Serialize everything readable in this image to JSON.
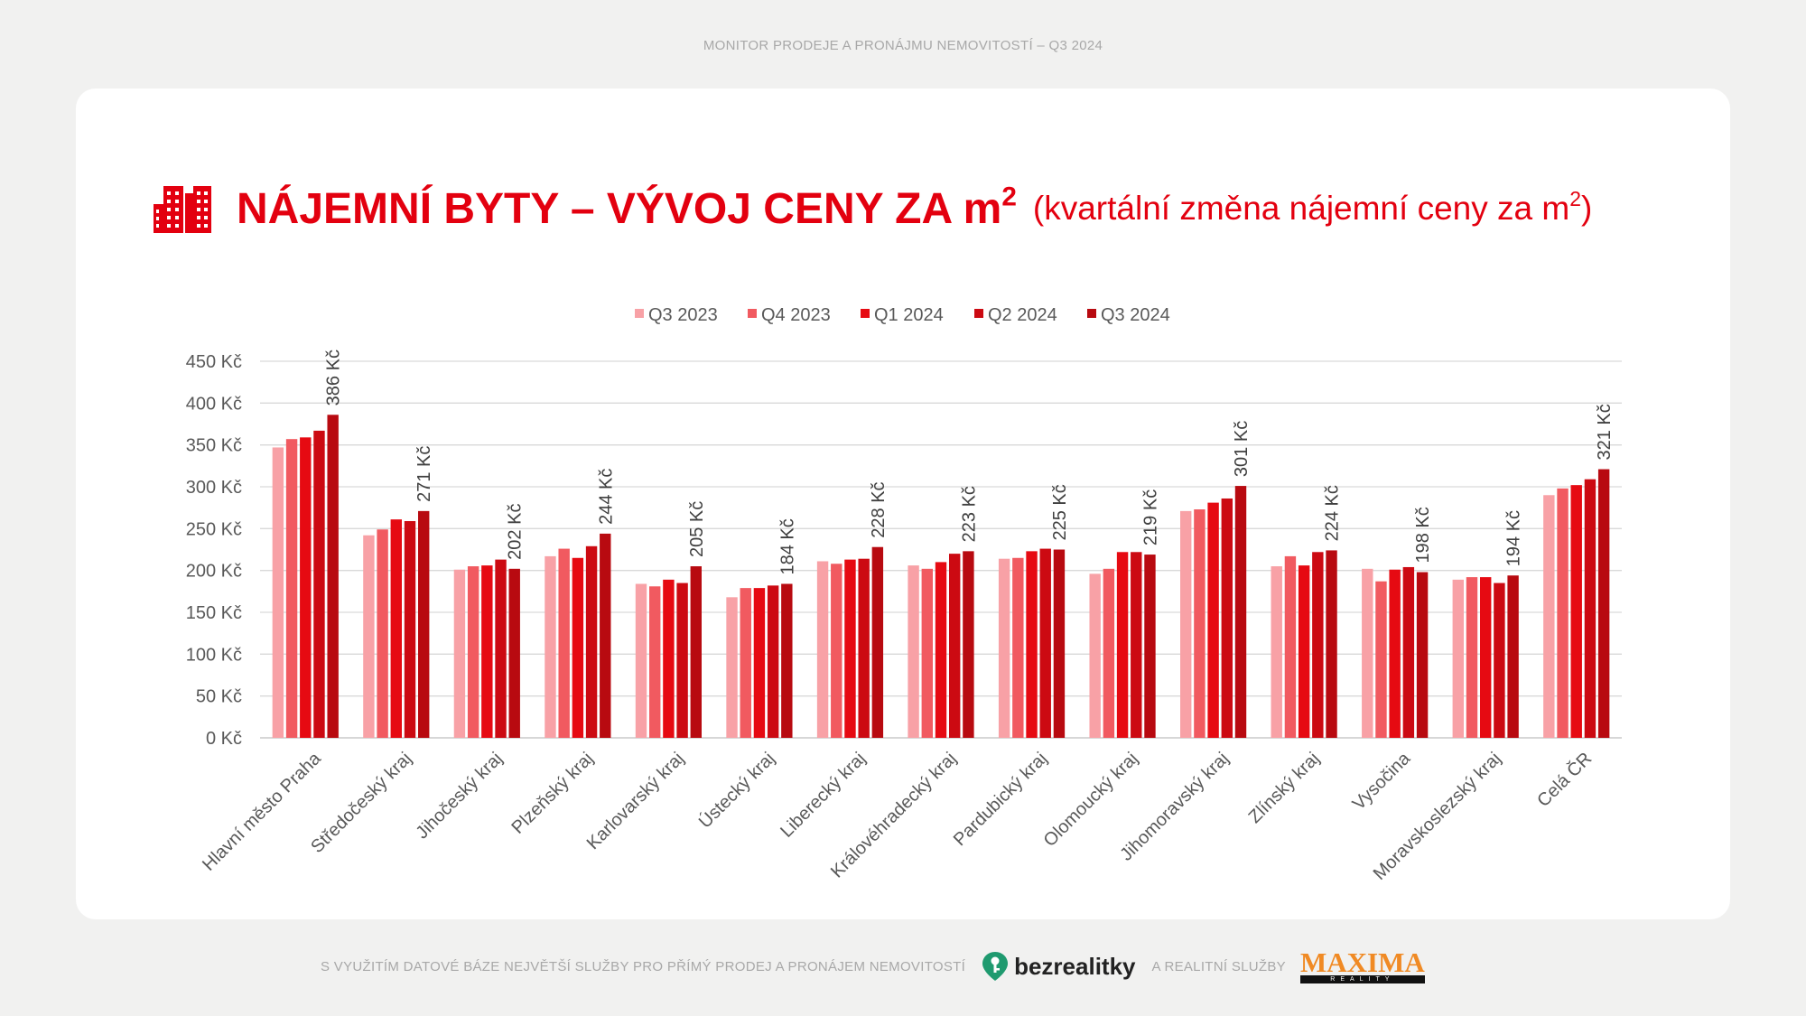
{
  "header": {
    "top_text": "MONITOR PRODEJE A PRONÁJMU NEMOVITOSTÍ – Q3 2024"
  },
  "title": {
    "main": "NÁJEMNÍ BYTY – VÝVOJ CENY ZA m",
    "main_sup": "2",
    "sub": "(kvartální změna nájemní ceny za m",
    "sub_sup": "2",
    "sub_end": ")",
    "icon": "apartment-buildings-icon"
  },
  "footer": {
    "text1": "S VYUŽITÍM DATOVÉ BÁZE NEJVĚTŠÍ SLUŽBY PRO PŘÍMÝ PRODEJ A PRONÁJEM NEMOVITOSTÍ",
    "brand1": "bezrealitky",
    "brand1_icon": "location-key-icon",
    "text2": "A REALITNÍ SLUŽBY",
    "brand2": "MAXIMA",
    "brand2_sub": "REALITY"
  },
  "colors": {
    "title": "#e3000f",
    "series": [
      "#f8a1a6",
      "#f15a60",
      "#e60a12",
      "#cc0a12",
      "#b80a10"
    ]
  },
  "chart_data": {
    "type": "bar",
    "categories": [
      "Hlavní město Praha",
      "Středočeský kraj",
      "Jihočeský kraj",
      "Plzeňský kraj",
      "Karlovarský kraj",
      "Ústecký kraj",
      "Liberecký kraj",
      "Královéhradecký kraj",
      "Pardubický kraj",
      "Olomoucký kraj",
      "Jihomoravský kraj",
      "Zlínský kraj",
      "Vysočina",
      "Moravskoslezský kraj",
      "Celá ČR"
    ],
    "series": [
      {
        "name": "Q3 2023",
        "values": [
          347,
          242,
          201,
          217,
          184,
          168,
          211,
          206,
          214,
          196,
          271,
          205,
          202,
          189,
          290
        ]
      },
      {
        "name": "Q4 2023",
        "values": [
          357,
          249,
          205,
          226,
          181,
          179,
          208,
          202,
          215,
          202,
          273,
          217,
          187,
          192,
          298
        ]
      },
      {
        "name": "Q1 2024",
        "values": [
          359,
          261,
          206,
          215,
          189,
          179,
          213,
          210,
          223,
          222,
          281,
          206,
          201,
          192,
          302
        ]
      },
      {
        "name": "Q2 2024",
        "values": [
          367,
          259,
          213,
          229,
          185,
          182,
          214,
          220,
          226,
          222,
          286,
          222,
          204,
          185,
          309
        ]
      },
      {
        "name": "Q3 2024",
        "values": [
          386,
          271,
          202,
          244,
          205,
          184,
          228,
          223,
          225,
          219,
          301,
          224,
          198,
          194,
          321
        ]
      }
    ],
    "data_labels": [
      "386 Kč",
      "271 Kč",
      "202 Kč",
      "244 Kč",
      "205 Kč",
      "184 Kč",
      "228 Kč",
      "223 Kč",
      "225 Kč",
      "219 Kč",
      "301 Kč",
      "224 Kč",
      "198 Kč",
      "194 Kč",
      "321 Kč"
    ],
    "y_ticks": [
      "0 Kč",
      "50 Kč",
      "100 Kč",
      "150 Kč",
      "200 Kč",
      "250 Kč",
      "300 Kč",
      "350 Kč",
      "400 Kč",
      "450 Kč"
    ],
    "ylim": [
      0,
      450
    ],
    "grid": true,
    "legend_position": "top-center"
  }
}
